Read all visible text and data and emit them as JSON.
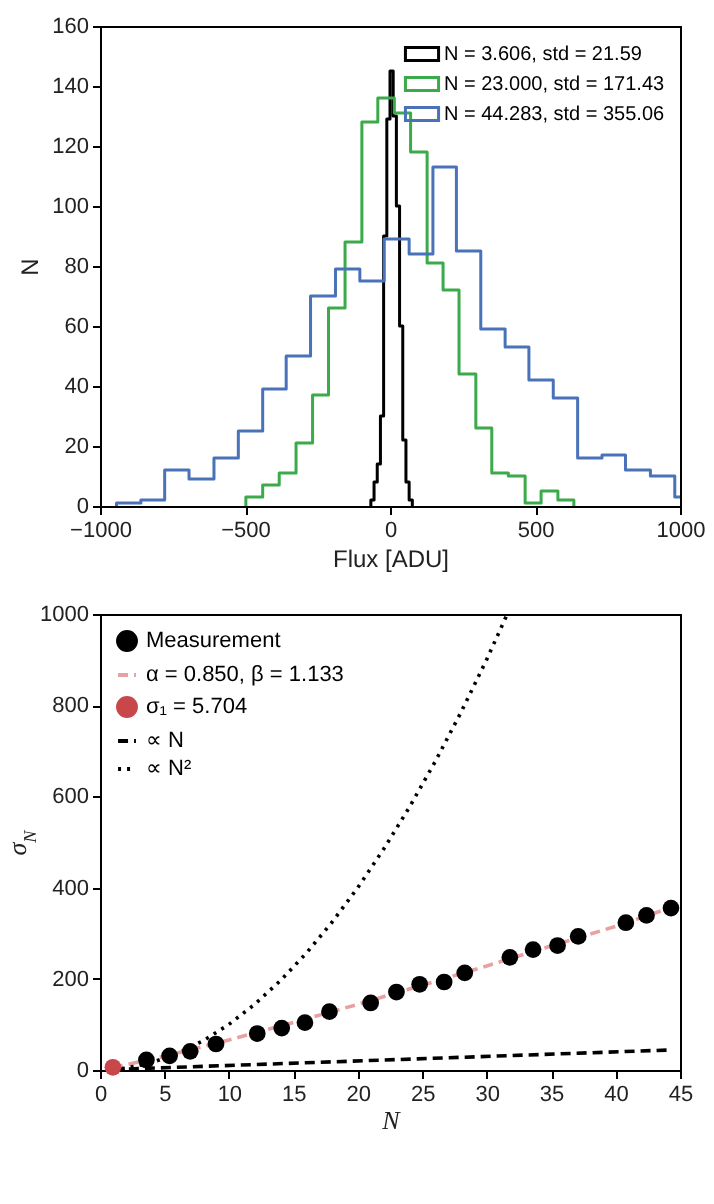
{
  "chart_data": [
    {
      "type": "step",
      "xlabel": "Flux [ADU]",
      "ylabel": "N",
      "xlim": [
        -1000,
        1000
      ],
      "ylim": [
        0,
        160
      ],
      "xticks": [
        -1000,
        -500,
        0,
        500,
        1000
      ],
      "yticks": [
        0,
        20,
        40,
        60,
        80,
        100,
        120,
        140,
        160
      ],
      "legend": "top right",
      "series": [
        {
          "name": "N = 3.606, std = 21.59",
          "color": "#000000",
          "x": [
            -66,
            -66,
            -55,
            -44,
            -33,
            -22,
            -11,
            0,
            11,
            22,
            33,
            44,
            55,
            66,
            77
          ],
          "values": [
            0,
            2,
            8,
            14,
            30,
            90,
            129,
            145,
            130,
            100,
            60,
            22,
            8,
            2,
            0
          ]
        },
        {
          "name": "N = 23.000, std = 171.43",
          "color": "#3aaa4a",
          "x": [
            -497,
            -497,
            -439,
            -382,
            -324,
            -267,
            -212,
            -155,
            -97,
            -42,
            15,
            71,
            128,
            183,
            238,
            296,
            351,
            408,
            466,
            521,
            579,
            634
          ],
          "values": [
            0,
            3,
            7,
            11,
            21,
            37,
            66,
            88,
            128,
            136,
            131,
            118,
            81,
            72,
            44,
            26,
            11,
            10,
            1,
            5,
            2,
            0
          ]
        },
        {
          "name": "N = 44.283, std = 355.06",
          "color": "#4a72b8",
          "x": [
            -943,
            -943,
            -859,
            -777,
            -693,
            -607,
            -523,
            -439,
            -358,
            -274,
            -188,
            -104,
            -20,
            66,
            148,
            229,
            313,
            397,
            479,
            563,
            647,
            731,
            812,
            898,
            982,
            1000
          ],
          "values": [
            0,
            1,
            2,
            12,
            9,
            16,
            25,
            39,
            50,
            70,
            79,
            75,
            89,
            84,
            113,
            85,
            59,
            53,
            42,
            36,
            16,
            17,
            12,
            10,
            3,
            3
          ]
        }
      ]
    },
    {
      "type": "scatter",
      "xlabel": "N",
      "ylabel": "σ$_{N}$",
      "xlim": [
        0,
        45
      ],
      "ylim": [
        0,
        1000
      ],
      "xticks": [
        0,
        5,
        10,
        15,
        20,
        25,
        30,
        35,
        40,
        45
      ],
      "yticks": [
        0,
        200,
        400,
        600,
        800,
        1000
      ],
      "legend": "top left",
      "series": [
        {
          "name": "Measurement",
          "type": "scatter",
          "marker": "circle",
          "color": "#000000",
          "x": [
            3.6,
            5.4,
            7.0,
            9.0,
            12.2,
            14.1,
            15.9,
            17.8,
            21.0,
            23.0,
            24.8,
            26.7,
            28.3,
            31.8,
            33.6,
            35.5,
            37.1,
            40.8,
            42.4,
            44.3
          ],
          "values": [
            22,
            31,
            41,
            57,
            80,
            92,
            104,
            128,
            147,
            171,
            188,
            193,
            213,
            247,
            264,
            273,
            293,
            323,
            339,
            355
          ]
        },
        {
          "name": "α = 0.850, β = 1.133",
          "type": "line",
          "line_style": "dashed",
          "color": "#e8a0a0",
          "x": [
            1,
            5,
            10,
            15,
            20,
            25,
            30,
            35,
            40,
            45
          ],
          "values": [
            5,
            30,
            66,
            104,
            144,
            186,
            228,
            272,
            315,
            363
          ]
        },
        {
          "name": "σ₁ = 5.704",
          "type": "scatter",
          "marker": "circle",
          "color": "#c8474a",
          "x": [
            1
          ],
          "values": [
            6
          ]
        },
        {
          "name": "∝ N",
          "type": "line",
          "line_style": "dashed",
          "color": "#000000",
          "x": [
            1,
            44.3
          ],
          "values": [
            1,
            44
          ]
        },
        {
          "name": "∝ N²",
          "type": "line",
          "line_style": "dotted",
          "color": "#000000",
          "x": [
            1,
            2,
            4,
            6,
            8,
            10,
            12,
            14,
            16,
            18,
            20,
            22,
            24,
            26,
            28,
            30,
            31.6
          ],
          "values": [
            1,
            4,
            16,
            36,
            64,
            100,
            144,
            196,
            256,
            324,
            400,
            484,
            576,
            676,
            784,
            900,
            1000
          ]
        }
      ]
    }
  ]
}
